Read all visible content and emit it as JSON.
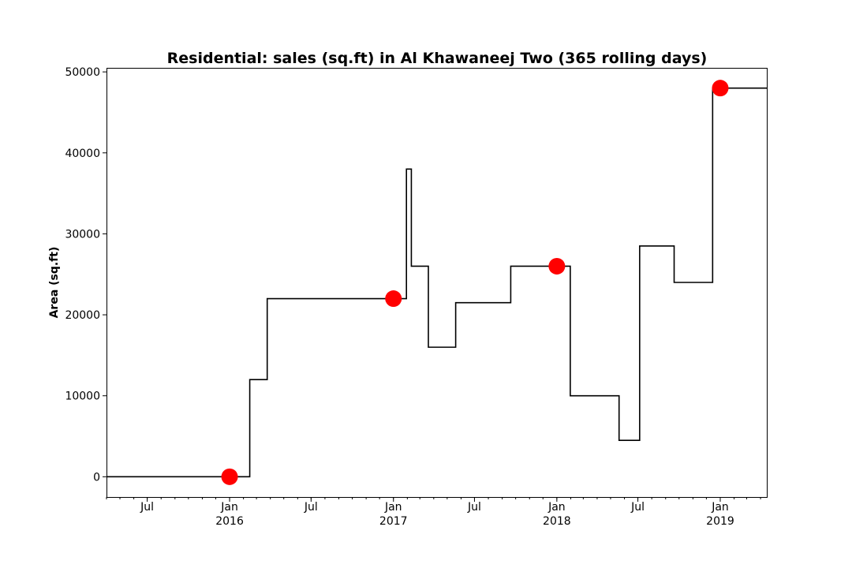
{
  "chart_data": {
    "type": "line",
    "title": "Residential: sales (sq.ft) in Al Khawaneej Two (365 rolling days)",
    "xlabel": "",
    "ylabel": "Area (sq.ft)",
    "xlim": [
      "2015-04-01",
      "2019-04-15"
    ],
    "ylim": [
      -2500,
      50500
    ],
    "grid": false,
    "legend": "none",
    "y_ticks": [
      0,
      10000,
      20000,
      30000,
      40000,
      50000
    ],
    "y_tick_labels": [
      "0",
      "10000",
      "20000",
      "30000",
      "40000",
      "50000"
    ],
    "x_major_ticks": [
      {
        "date": "2015-07-01",
        "label": "Jul",
        "year": ""
      },
      {
        "date": "2016-01-01",
        "label": "Jan",
        "year": "2016"
      },
      {
        "date": "2016-07-01",
        "label": "Jul",
        "year": ""
      },
      {
        "date": "2017-01-01",
        "label": "Jan",
        "year": "2017"
      },
      {
        "date": "2017-07-01",
        "label": "Jul",
        "year": ""
      },
      {
        "date": "2018-01-01",
        "label": "Jan",
        "year": "2018"
      },
      {
        "date": "2018-07-01",
        "label": "Jul",
        "year": ""
      },
      {
        "date": "2019-01-01",
        "label": "Jan",
        "year": "2019"
      }
    ],
    "line_color": "#000000",
    "marker_color": "#ff0000",
    "series": [
      {
        "name": "",
        "step": "post",
        "points": [
          {
            "x": "2015-04-01",
            "y": 0
          },
          {
            "x": "2016-02-15",
            "y": 12000
          },
          {
            "x": "2016-03-25",
            "y": 22000
          },
          {
            "x": "2017-01-30",
            "y": 38000
          },
          {
            "x": "2017-02-10",
            "y": 26000
          },
          {
            "x": "2017-03-20",
            "y": 16000
          },
          {
            "x": "2017-05-20",
            "y": 21500
          },
          {
            "x": "2017-09-20",
            "y": 26000
          },
          {
            "x": "2018-01-31",
            "y": 10000
          },
          {
            "x": "2018-05-20",
            "y": 4500
          },
          {
            "x": "2018-07-05",
            "y": 28500
          },
          {
            "x": "2018-09-20",
            "y": 24000
          },
          {
            "x": "2018-12-15",
            "y": 48000
          },
          {
            "x": "2019-04-15",
            "y": 48000
          }
        ]
      }
    ],
    "markers": [
      {
        "x": "2016-01-01",
        "y": 0
      },
      {
        "x": "2017-01-01",
        "y": 22000
      },
      {
        "x": "2018-01-01",
        "y": 26000
      },
      {
        "x": "2019-01-01",
        "y": 48000
      }
    ]
  }
}
